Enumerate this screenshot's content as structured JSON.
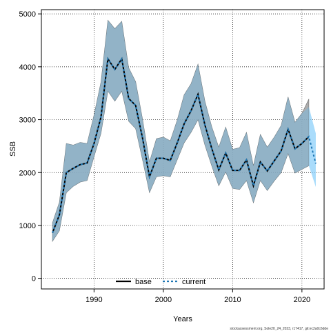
{
  "chart_data": {
    "type": "line",
    "title": "",
    "xlabel": "Years",
    "ylabel": "SSB",
    "xlim": [
      1982.4,
      2023.2
    ],
    "ylim": [
      -200,
      5080
    ],
    "x_ticks": [
      1990,
      2000,
      2010,
      2020
    ],
    "y_ticks": [
      0,
      1000,
      2000,
      3000,
      4000,
      5000
    ],
    "grid": true,
    "legend_position": "bottom-center",
    "x": [
      1984,
      1985,
      1986,
      1987,
      1988,
      1989,
      1990,
      1991,
      1992,
      1993,
      1994,
      1995,
      1996,
      1997,
      1998,
      1999,
      2000,
      2001,
      2002,
      2003,
      2004,
      2005,
      2006,
      2007,
      2008,
      2009,
      2010,
      2011,
      2012,
      2013,
      2014,
      2015,
      2016,
      2017,
      2018,
      2019,
      2020,
      2021,
      2022
    ],
    "series": [
      {
        "name": "base",
        "color": "#000000",
        "line_style": "solid",
        "x": [
          1984,
          1985,
          1986,
          1987,
          1988,
          1989,
          1990,
          1991,
          1992,
          1993,
          1994,
          1995,
          1996,
          1997,
          1998,
          1999,
          2000,
          2001,
          2002,
          2003,
          2004,
          2005,
          2006,
          2007,
          2008,
          2009,
          2010,
          2011,
          2012,
          2013,
          2014,
          2015,
          2016,
          2017,
          2018,
          2019,
          2020,
          2021
        ],
        "values": [
          860,
          1200,
          2000,
          2080,
          2150,
          2180,
          2550,
          3050,
          4150,
          3950,
          4150,
          3400,
          3270,
          2650,
          1920,
          2270,
          2270,
          2230,
          2560,
          2920,
          3170,
          3480,
          2900,
          2450,
          2050,
          2370,
          2040,
          2040,
          2240,
          1750,
          2200,
          2030,
          2220,
          2410,
          2820,
          2450,
          2550,
          2680
        ],
        "ci_lower": [
          700,
          900,
          1620,
          1740,
          1820,
          1850,
          2300,
          2740,
          3540,
          3350,
          3540,
          2970,
          2830,
          2240,
          1620,
          1920,
          1940,
          1920,
          2240,
          2560,
          2760,
          3000,
          2520,
          2120,
          1750,
          2010,
          1700,
          1680,
          1850,
          1430,
          1850,
          1660,
          1840,
          2000,
          2360,
          1990,
          2060,
          2130
        ],
        "ci_upper": [
          1050,
          1440,
          2550,
          2520,
          2570,
          2550,
          3090,
          3710,
          4880,
          4720,
          4860,
          3980,
          3720,
          3010,
          2200,
          2640,
          2670,
          2600,
          2990,
          3470,
          3680,
          4050,
          3350,
          2860,
          2480,
          2860,
          2440,
          2470,
          2760,
          2130,
          2720,
          2480,
          2670,
          2890,
          3430,
          2950,
          3120,
          3390
        ]
      },
      {
        "name": "current",
        "color": "#1f77b4",
        "line_style": "dashed",
        "x": [
          1984,
          1985,
          1986,
          1987,
          1988,
          1989,
          1990,
          1991,
          1992,
          1993,
          1994,
          1995,
          1996,
          1997,
          1998,
          1999,
          2000,
          2001,
          2002,
          2003,
          2004,
          2005,
          2006,
          2007,
          2008,
          2009,
          2010,
          2011,
          2012,
          2013,
          2014,
          2015,
          2016,
          2017,
          2018,
          2019,
          2020,
          2021,
          2022
        ],
        "values": [
          860,
          1200,
          2000,
          2080,
          2150,
          2180,
          2550,
          3050,
          4150,
          3950,
          4150,
          3400,
          3270,
          2650,
          1920,
          2270,
          2270,
          2230,
          2560,
          2920,
          3170,
          3480,
          2900,
          2450,
          2050,
          2370,
          2040,
          2040,
          2240,
          1750,
          2200,
          2030,
          2220,
          2410,
          2820,
          2450,
          2550,
          2680,
          2170
        ],
        "ci_lower": [
          700,
          900,
          1620,
          1740,
          1820,
          1850,
          2300,
          2740,
          3540,
          3350,
          3540,
          2970,
          2830,
          2240,
          1620,
          1920,
          1940,
          1920,
          2240,
          2560,
          2760,
          3000,
          2520,
          2120,
          1750,
          2010,
          1700,
          1680,
          1850,
          1430,
          1850,
          1660,
          1840,
          2000,
          2360,
          1990,
          2060,
          2130,
          1730
        ],
        "ci_upper": [
          1050,
          1440,
          2550,
          2520,
          2570,
          2550,
          3090,
          3710,
          4880,
          4720,
          4860,
          3980,
          3720,
          3010,
          2200,
          2640,
          2670,
          2600,
          2990,
          3470,
          3680,
          4050,
          3350,
          2860,
          2480,
          2860,
          2440,
          2470,
          2760,
          2130,
          2720,
          2480,
          2670,
          2890,
          3430,
          2950,
          3120,
          3240,
          2740
        ]
      }
    ],
    "legend": [
      {
        "label": "base",
        "color": "#000000",
        "line_style": "solid"
      },
      {
        "label": "current",
        "color": "#1f77b4",
        "line_style": "dashed"
      }
    ]
  },
  "colors": {
    "base_ci_fill": "#8a8a8a",
    "current_ci_fill": "#87cefa",
    "current_line": "#1f77b4",
    "base_line": "#000000",
    "grid": "#000000"
  },
  "footer": "stockassessment.org, Sole20_24_2023, r17417, git:ec2a0c6dde"
}
